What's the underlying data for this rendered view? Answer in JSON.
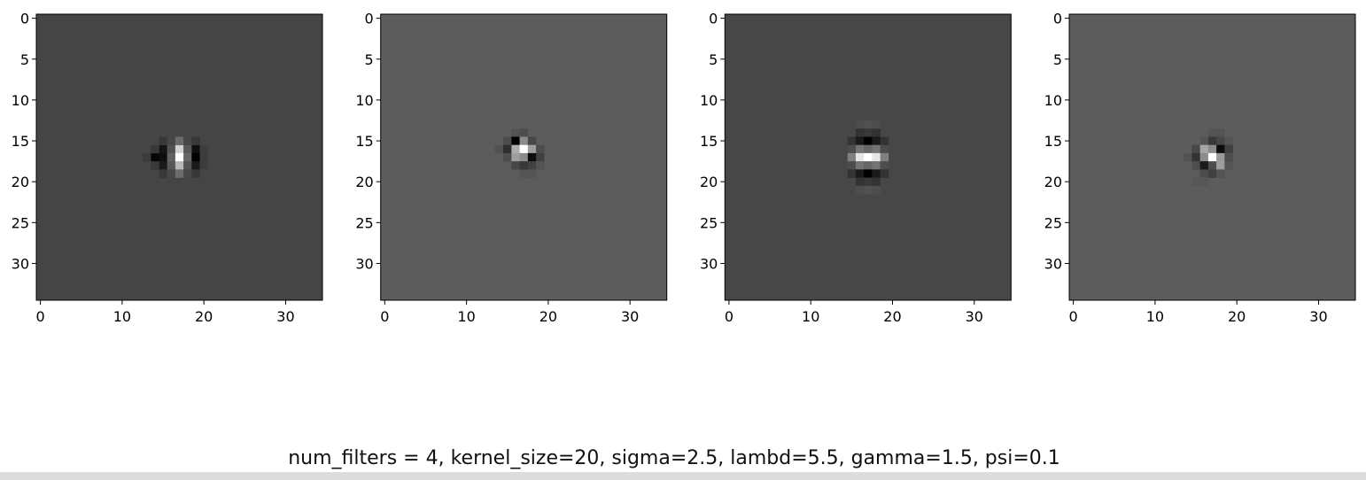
{
  "figure": {
    "caption": "num_filters = 4, kernel_size=20, sigma=2.5, lambd=5.5, gamma=1.5, psi=0.1"
  },
  "chart_data": [
    {
      "type": "heatmap",
      "colormap": "gray",
      "shape": [
        35,
        35
      ],
      "background": 0.27,
      "xticks": [
        0,
        10,
        20,
        30
      ],
      "yticks": [
        0,
        5,
        10,
        15,
        20,
        25,
        30
      ],
      "xlim": [
        -0.5,
        34.5
      ],
      "ylim": [
        34.5,
        -0.5
      ],
      "cells": [
        {
          "r": 16,
          "c": 15,
          "v": 0.08
        },
        {
          "r": 16,
          "c": 16,
          "v": 0.32
        },
        {
          "r": 16,
          "c": 17,
          "v": 0.82
        },
        {
          "r": 16,
          "c": 18,
          "v": 0.35
        },
        {
          "r": 16,
          "c": 19,
          "v": 0.06
        },
        {
          "r": 17,
          "c": 14,
          "v": 0.02
        },
        {
          "r": 17,
          "c": 15,
          "v": 0.05
        },
        {
          "r": 17,
          "c": 16,
          "v": 0.38
        },
        {
          "r": 17,
          "c": 17,
          "v": 1.0
        },
        {
          "r": 17,
          "c": 18,
          "v": 0.4
        },
        {
          "r": 17,
          "c": 19,
          "v": 0.0
        },
        {
          "r": 18,
          "c": 15,
          "v": 0.1
        },
        {
          "r": 18,
          "c": 16,
          "v": 0.34
        },
        {
          "r": 18,
          "c": 17,
          "v": 0.72
        },
        {
          "r": 18,
          "c": 18,
          "v": 0.33
        },
        {
          "r": 18,
          "c": 19,
          "v": 0.1
        },
        {
          "r": 15,
          "c": 15,
          "v": 0.22
        },
        {
          "r": 15,
          "c": 16,
          "v": 0.28
        },
        {
          "r": 15,
          "c": 17,
          "v": 0.42
        },
        {
          "r": 15,
          "c": 18,
          "v": 0.28
        },
        {
          "r": 15,
          "c": 19,
          "v": 0.22
        },
        {
          "r": 19,
          "c": 15,
          "v": 0.22
        },
        {
          "r": 19,
          "c": 16,
          "v": 0.28
        },
        {
          "r": 19,
          "c": 17,
          "v": 0.42
        },
        {
          "r": 19,
          "c": 18,
          "v": 0.28
        },
        {
          "r": 19,
          "c": 19,
          "v": 0.22
        },
        {
          "r": 17,
          "c": 13,
          "v": 0.23
        },
        {
          "r": 17,
          "c": 20,
          "v": 0.23
        },
        {
          "r": 16,
          "c": 14,
          "v": 0.22
        },
        {
          "r": 18,
          "c": 14,
          "v": 0.22
        },
        {
          "r": 16,
          "c": 20,
          "v": 0.24
        },
        {
          "r": 18,
          "c": 20,
          "v": 0.24
        }
      ]
    },
    {
      "type": "heatmap",
      "colormap": "gray",
      "shape": [
        35,
        35
      ],
      "background": 0.36,
      "xticks": [
        0,
        10,
        20,
        30
      ],
      "yticks": [
        0,
        5,
        10,
        15,
        20,
        25,
        30
      ],
      "xlim": [
        -0.5,
        34.5
      ],
      "ylim": [
        34.5,
        -0.5
      ],
      "cells": [
        {
          "r": 14,
          "c": 16,
          "v": 0.33
        },
        {
          "r": 14,
          "c": 17,
          "v": 0.3
        },
        {
          "r": 15,
          "c": 15,
          "v": 0.3
        },
        {
          "r": 15,
          "c": 16,
          "v": 0.0
        },
        {
          "r": 15,
          "c": 17,
          "v": 0.55
        },
        {
          "r": 15,
          "c": 18,
          "v": 0.28
        },
        {
          "r": 16,
          "c": 14,
          "v": 0.32
        },
        {
          "r": 16,
          "c": 15,
          "v": 0.18
        },
        {
          "r": 16,
          "c": 16,
          "v": 0.68
        },
        {
          "r": 16,
          "c": 17,
          "v": 1.0
        },
        {
          "r": 16,
          "c": 18,
          "v": 0.62
        },
        {
          "r": 16,
          "c": 19,
          "v": 0.3
        },
        {
          "r": 17,
          "c": 15,
          "v": 0.3
        },
        {
          "r": 17,
          "c": 16,
          "v": 0.62
        },
        {
          "r": 17,
          "c": 17,
          "v": 0.55
        },
        {
          "r": 17,
          "c": 18,
          "v": 0.05
        },
        {
          "r": 17,
          "c": 19,
          "v": 0.25
        },
        {
          "r": 18,
          "c": 16,
          "v": 0.28
        },
        {
          "r": 18,
          "c": 17,
          "v": 0.22
        },
        {
          "r": 18,
          "c": 18,
          "v": 0.26
        },
        {
          "r": 18,
          "c": 19,
          "v": 0.33
        },
        {
          "r": 19,
          "c": 17,
          "v": 0.33
        },
        {
          "r": 19,
          "c": 18,
          "v": 0.33
        }
      ]
    },
    {
      "type": "heatmap",
      "colormap": "gray",
      "shape": [
        35,
        35
      ],
      "background": 0.28,
      "xticks": [
        0,
        10,
        20,
        30
      ],
      "yticks": [
        0,
        5,
        10,
        15,
        20,
        25,
        30
      ],
      "xlim": [
        -0.5,
        34.5
      ],
      "ylim": [
        34.5,
        -0.5
      ],
      "cells": [
        {
          "r": 13,
          "c": 16,
          "v": 0.3
        },
        {
          "r": 13,
          "c": 17,
          "v": 0.32
        },
        {
          "r": 13,
          "c": 18,
          "v": 0.3
        },
        {
          "r": 14,
          "c": 16,
          "v": 0.2
        },
        {
          "r": 14,
          "c": 17,
          "v": 0.22
        },
        {
          "r": 14,
          "c": 18,
          "v": 0.2
        },
        {
          "r": 15,
          "c": 15,
          "v": 0.2
        },
        {
          "r": 15,
          "c": 16,
          "v": 0.1
        },
        {
          "r": 15,
          "c": 17,
          "v": 0.0
        },
        {
          "r": 15,
          "c": 18,
          "v": 0.1
        },
        {
          "r": 15,
          "c": 19,
          "v": 0.2
        },
        {
          "r": 16,
          "c": 15,
          "v": 0.3
        },
        {
          "r": 16,
          "c": 16,
          "v": 0.45
        },
        {
          "r": 16,
          "c": 17,
          "v": 0.4
        },
        {
          "r": 16,
          "c": 18,
          "v": 0.45
        },
        {
          "r": 16,
          "c": 19,
          "v": 0.3
        },
        {
          "r": 17,
          "c": 15,
          "v": 0.5
        },
        {
          "r": 17,
          "c": 16,
          "v": 0.9
        },
        {
          "r": 17,
          "c": 17,
          "v": 1.0
        },
        {
          "r": 17,
          "c": 18,
          "v": 0.9
        },
        {
          "r": 17,
          "c": 19,
          "v": 0.5
        },
        {
          "r": 18,
          "c": 15,
          "v": 0.3
        },
        {
          "r": 18,
          "c": 16,
          "v": 0.45
        },
        {
          "r": 18,
          "c": 17,
          "v": 0.4
        },
        {
          "r": 18,
          "c": 18,
          "v": 0.45
        },
        {
          "r": 18,
          "c": 19,
          "v": 0.3
        },
        {
          "r": 19,
          "c": 15,
          "v": 0.2
        },
        {
          "r": 19,
          "c": 16,
          "v": 0.1
        },
        {
          "r": 19,
          "c": 17,
          "v": 0.0
        },
        {
          "r": 19,
          "c": 18,
          "v": 0.1
        },
        {
          "r": 19,
          "c": 19,
          "v": 0.2
        },
        {
          "r": 20,
          "c": 16,
          "v": 0.2
        },
        {
          "r": 20,
          "c": 17,
          "v": 0.22
        },
        {
          "r": 20,
          "c": 18,
          "v": 0.2
        },
        {
          "r": 21,
          "c": 16,
          "v": 0.3
        },
        {
          "r": 21,
          "c": 17,
          "v": 0.32
        },
        {
          "r": 21,
          "c": 18,
          "v": 0.3
        }
      ]
    },
    {
      "type": "heatmap",
      "colormap": "gray",
      "shape": [
        35,
        35
      ],
      "background": 0.36,
      "xticks": [
        0,
        10,
        20,
        30
      ],
      "yticks": [
        0,
        5,
        10,
        15,
        20,
        25,
        30
      ],
      "xlim": [
        -0.5,
        34.5
      ],
      "ylim": [
        34.5,
        -0.5
      ],
      "cells": [
        {
          "r": 14,
          "c": 17,
          "v": 0.33
        },
        {
          "r": 14,
          "c": 18,
          "v": 0.33
        },
        {
          "r": 15,
          "c": 16,
          "v": 0.33
        },
        {
          "r": 15,
          "c": 17,
          "v": 0.22
        },
        {
          "r": 15,
          "c": 18,
          "v": 0.28
        },
        {
          "r": 15,
          "c": 19,
          "v": 0.33
        },
        {
          "r": 16,
          "c": 15,
          "v": 0.28
        },
        {
          "r": 16,
          "c": 16,
          "v": 0.65
        },
        {
          "r": 16,
          "c": 17,
          "v": 0.55
        },
        {
          "r": 16,
          "c": 18,
          "v": 0.05
        },
        {
          "r": 16,
          "c": 19,
          "v": 0.25
        },
        {
          "r": 17,
          "c": 14,
          "v": 0.32
        },
        {
          "r": 17,
          "c": 15,
          "v": 0.2
        },
        {
          "r": 17,
          "c": 16,
          "v": 0.55
        },
        {
          "r": 17,
          "c": 17,
          "v": 1.0
        },
        {
          "r": 17,
          "c": 18,
          "v": 0.6
        },
        {
          "r": 17,
          "c": 19,
          "v": 0.3
        },
        {
          "r": 18,
          "c": 15,
          "v": 0.3
        },
        {
          "r": 18,
          "c": 16,
          "v": 0.1
        },
        {
          "r": 18,
          "c": 17,
          "v": 0.3
        },
        {
          "r": 18,
          "c": 18,
          "v": 0.62
        },
        {
          "r": 18,
          "c": 19,
          "v": 0.33
        },
        {
          "r": 19,
          "c": 16,
          "v": 0.3
        },
        {
          "r": 19,
          "c": 17,
          "v": 0.25
        },
        {
          "r": 19,
          "c": 18,
          "v": 0.33
        },
        {
          "r": 20,
          "c": 15,
          "v": 0.34
        },
        {
          "r": 20,
          "c": 16,
          "v": 0.34
        }
      ]
    }
  ]
}
